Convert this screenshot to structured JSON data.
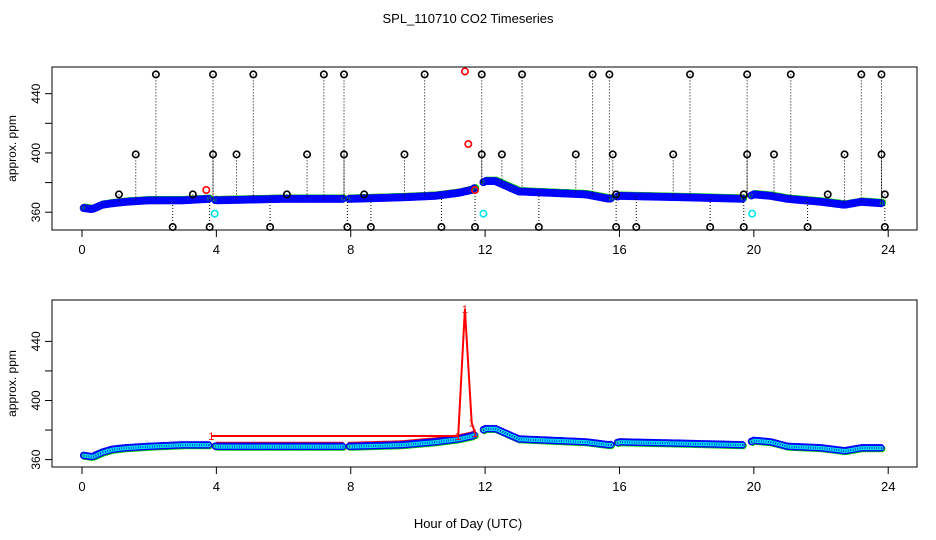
{
  "title": "SPL_110710  CO2 Timeseries",
  "xlabel": "Hour of Day (UTC)",
  "colors": {
    "black": "#000000",
    "red": "#ff0000",
    "green": "#00cc00",
    "blue": "#0000ff",
    "cyan": "#00e5e5"
  },
  "chart_data": [
    {
      "type": "scatter",
      "panel": "top",
      "ylabel": "approx. ppm",
      "xlim": [
        0,
        24
      ],
      "ylim": [
        348,
        458
      ],
      "x_ticks": [
        0,
        4,
        8,
        12,
        16,
        20,
        24
      ],
      "y_ticks": [
        360,
        400,
        440
      ],
      "y_minor_ticks": [
        380,
        420
      ],
      "gaps": [
        [
          3.8,
          3.9
        ],
        [
          7.8,
          7.9
        ],
        [
          11.7,
          11.9
        ],
        [
          15.8,
          15.9
        ],
        [
          19.7,
          19.9
        ]
      ],
      "baseline": [
        [
          0,
          363
        ],
        [
          0.3,
          362
        ],
        [
          0.6,
          365
        ],
        [
          0.9,
          366
        ],
        [
          1.3,
          367
        ],
        [
          2,
          368
        ],
        [
          3,
          368
        ],
        [
          3.8,
          369
        ],
        [
          4,
          368
        ],
        [
          6,
          369
        ],
        [
          7.8,
          369
        ],
        [
          8,
          369
        ],
        [
          9.5,
          370
        ],
        [
          10.5,
          371
        ],
        [
          11.2,
          373
        ],
        [
          11.6,
          375
        ],
        [
          11.8,
          378
        ],
        [
          12,
          381
        ],
        [
          12.3,
          381
        ],
        [
          12.6,
          378
        ],
        [
          13,
          374
        ],
        [
          14,
          373
        ],
        [
          15,
          372
        ],
        [
          15.7,
          369
        ],
        [
          16,
          371
        ],
        [
          18,
          370
        ],
        [
          19.7,
          369
        ],
        [
          20,
          372
        ],
        [
          20.5,
          371
        ],
        [
          21,
          369
        ],
        [
          22,
          367
        ],
        [
          22.7,
          365
        ],
        [
          23.2,
          367
        ],
        [
          23.8,
          366
        ]
      ],
      "series": [
        {
          "name": "black spikes",
          "color": "black",
          "points": [
            [
              1.1,
              372
            ],
            [
              1.6,
              399
            ],
            [
              2.2,
              453
            ],
            [
              2.7,
              350
            ],
            [
              3.3,
              372
            ],
            [
              3.8,
              350
            ],
            [
              3.9,
              399
            ],
            [
              3.9,
              453
            ],
            [
              4.6,
              399
            ],
            [
              5.1,
              453
            ],
            [
              5.6,
              350
            ],
            [
              6.1,
              372
            ],
            [
              6.7,
              399
            ],
            [
              7.2,
              453
            ],
            [
              7.8,
              453
            ],
            [
              7.8,
              399
            ],
            [
              7.9,
              350
            ],
            [
              8.4,
              372
            ],
            [
              8.6,
              350
            ],
            [
              9.6,
              399
            ],
            [
              10.2,
              453
            ],
            [
              10.7,
              350
            ],
            [
              11.7,
              350
            ],
            [
              11.9,
              399
            ],
            [
              11.9,
              453
            ],
            [
              12.5,
              399
            ],
            [
              13.1,
              453
            ],
            [
              13.6,
              350
            ],
            [
              14.7,
              399
            ],
            [
              15.2,
              453
            ],
            [
              15.7,
              453
            ],
            [
              15.8,
              399
            ],
            [
              15.9,
              350
            ],
            [
              15.9,
              372
            ],
            [
              16.5,
              350
            ],
            [
              17.6,
              399
            ],
            [
              18.1,
              453
            ],
            [
              18.7,
              350
            ],
            [
              19.7,
              350
            ],
            [
              19.7,
              372
            ],
            [
              19.8,
              399
            ],
            [
              19.8,
              453
            ],
            [
              20.6,
              399
            ],
            [
              21.1,
              453
            ],
            [
              21.6,
              350
            ],
            [
              22.2,
              372
            ],
            [
              22.7,
              399
            ],
            [
              23.2,
              453
            ],
            [
              23.8,
              453
            ],
            [
              23.8,
              399
            ],
            [
              23.9,
              350
            ],
            [
              23.9,
              372
            ]
          ]
        },
        {
          "name": "red flags",
          "color": "red",
          "points": [
            [
              3.7,
              375
            ],
            [
              11.4,
              455
            ],
            [
              11.5,
              406
            ],
            [
              11.7,
              375
            ]
          ]
        },
        {
          "name": "cyan flags",
          "color": "cyan",
          "points": [
            [
              3.95,
              359
            ],
            [
              11.95,
              359
            ],
            [
              19.95,
              359
            ]
          ]
        }
      ]
    },
    {
      "type": "scatter",
      "panel": "bottom",
      "ylabel": "approx. ppm",
      "xlim": [
        0,
        24
      ],
      "ylim": [
        355,
        468
      ],
      "x_ticks": [
        0,
        4,
        8,
        12,
        16,
        20,
        24
      ],
      "y_ticks": [
        360,
        400,
        440
      ],
      "y_minor_ticks": [
        380,
        420
      ],
      "gaps": [
        [
          3.8,
          3.9
        ],
        [
          7.8,
          7.9
        ],
        [
          11.7,
          11.9
        ],
        [
          15.8,
          15.9
        ],
        [
          19.7,
          19.9
        ]
      ],
      "baseline": [
        [
          0,
          363
        ],
        [
          0.3,
          362
        ],
        [
          0.6,
          365
        ],
        [
          0.9,
          367
        ],
        [
          1.3,
          368
        ],
        [
          2,
          369
        ],
        [
          3,
          370
        ],
        [
          3.8,
          370
        ],
        [
          4,
          369
        ],
        [
          6,
          369
        ],
        [
          7.8,
          369
        ],
        [
          8,
          369
        ],
        [
          9.5,
          370
        ],
        [
          10.5,
          372
        ],
        [
          11.2,
          374
        ],
        [
          11.6,
          376
        ],
        [
          11.8,
          378
        ],
        [
          12,
          381
        ],
        [
          12.3,
          381
        ],
        [
          12.6,
          378
        ],
        [
          13,
          374
        ],
        [
          14,
          373
        ],
        [
          15,
          372
        ],
        [
          15.7,
          370
        ],
        [
          16,
          372
        ],
        [
          18,
          371
        ],
        [
          19.7,
          370
        ],
        [
          20,
          373
        ],
        [
          20.5,
          372
        ],
        [
          21,
          369
        ],
        [
          22,
          368
        ],
        [
          22.7,
          366
        ],
        [
          23.2,
          368
        ],
        [
          23.8,
          368
        ]
      ],
      "series": [
        {
          "name": "red line",
          "color": "red",
          "marker": "1",
          "points": [
            [
              3.85,
              376
            ],
            [
              11.2,
              376
            ],
            [
              11.4,
              462
            ],
            [
              11.6,
              385
            ],
            [
              11.7,
              378
            ]
          ]
        }
      ]
    }
  ]
}
